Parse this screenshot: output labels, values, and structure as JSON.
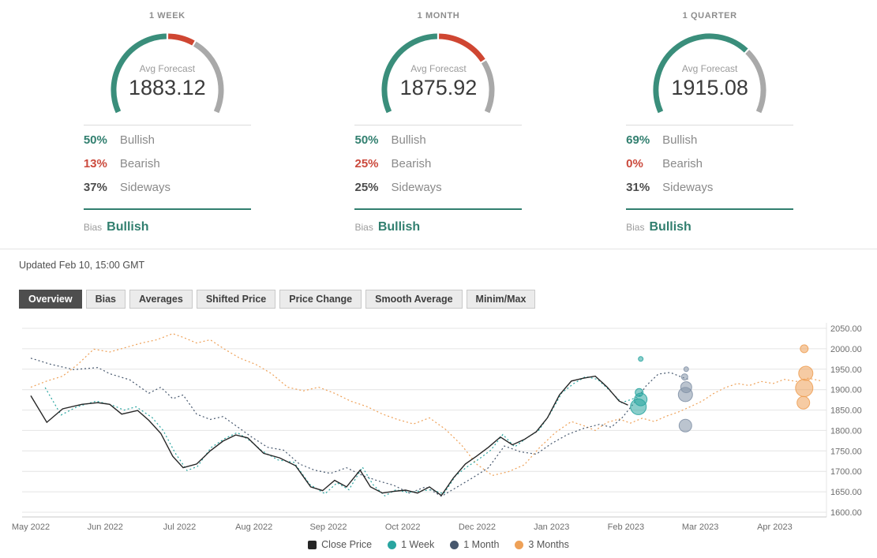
{
  "panels": [
    {
      "title": "1 WEEK",
      "avg_label": "Avg Forecast",
      "avg_value": "1883.12",
      "rows": [
        {
          "pct": "50%",
          "label": "Bullish",
          "type": "bullish"
        },
        {
          "pct": "13%",
          "label": "Bearish",
          "type": "bearish"
        },
        {
          "pct": "37%",
          "label": "Sideways",
          "type": "sideways"
        }
      ],
      "bias_label": "Bias",
      "bias_value": "Bullish"
    },
    {
      "title": "1 MONTH",
      "avg_label": "Avg Forecast",
      "avg_value": "1875.92",
      "rows": [
        {
          "pct": "50%",
          "label": "Bullish",
          "type": "bullish"
        },
        {
          "pct": "25%",
          "label": "Bearish",
          "type": "bearish"
        },
        {
          "pct": "25%",
          "label": "Sideways",
          "type": "sideways"
        }
      ],
      "bias_label": "Bias",
      "bias_value": "Bullish"
    },
    {
      "title": "1 QUARTER",
      "avg_label": "Avg Forecast",
      "avg_value": "1915.08",
      "rows": [
        {
          "pct": "69%",
          "label": "Bullish",
          "type": "bullish"
        },
        {
          "pct": "0%",
          "label": "Bearish",
          "type": "bearish"
        },
        {
          "pct": "31%",
          "label": "Sideways",
          "type": "sideways"
        }
      ],
      "bias_label": "Bias",
      "bias_value": "Bullish"
    }
  ],
  "updated": "Updated Feb 10, 15:00 GMT",
  "tabs": [
    {
      "label": "Overview",
      "active": true
    },
    {
      "label": "Bias"
    },
    {
      "label": "Averages"
    },
    {
      "label": "Shifted Price"
    },
    {
      "label": "Price Change"
    },
    {
      "label": "Smooth Average"
    },
    {
      "label": "Minim/Max"
    }
  ],
  "colors": {
    "gauge_bullish": "#3a8e7b",
    "gauge_bearish": "#cf4632",
    "gauge_sideways": "#a9a9a9",
    "accent_green": "#317f6f",
    "bearish_red": "#cb4a3d",
    "grid": "#e4e4e4",
    "axis": "#c9c9c9",
    "tick_text": "#6e6e6e"
  },
  "chart_data": {
    "type": "line",
    "title": "",
    "xlabel": "",
    "ylabel": "",
    "ylim": [
      1600,
      2050
    ],
    "grid": true,
    "legend_position": "bottom",
    "x_ticks": [
      "May 2022",
      "Jun 2022",
      "Jul 2022",
      "Aug 2022",
      "Sep 2022",
      "Oct 2022",
      "Dec 2022",
      "Jan 2023",
      "Feb 2023",
      "Mar 2023",
      "Apr 2023"
    ],
    "y_ticks": [
      "2050.00",
      "2000.00",
      "1950.00",
      "1900.00",
      "1850.00",
      "1800.00",
      "1750.00",
      "1700.00",
      "1650.00",
      "1600.00"
    ],
    "series": [
      {
        "name": "Close Price",
        "color": "#262626",
        "style": "solid",
        "marker": "square",
        "points": [
          [
            0.005,
            1885
          ],
          [
            0.025,
            1820
          ],
          [
            0.045,
            1853
          ],
          [
            0.069,
            1864
          ],
          [
            0.089,
            1868
          ],
          [
            0.104,
            1864
          ],
          [
            0.119,
            1840
          ],
          [
            0.139,
            1849
          ],
          [
            0.153,
            1825
          ],
          [
            0.168,
            1793
          ],
          [
            0.183,
            1737
          ],
          [
            0.196,
            1709
          ],
          [
            0.213,
            1718
          ],
          [
            0.23,
            1750
          ],
          [
            0.246,
            1774
          ],
          [
            0.262,
            1789
          ],
          [
            0.277,
            1782
          ],
          [
            0.297,
            1744
          ],
          [
            0.317,
            1733
          ],
          [
            0.337,
            1714
          ],
          [
            0.356,
            1662
          ],
          [
            0.371,
            1653
          ],
          [
            0.386,
            1678
          ],
          [
            0.401,
            1662
          ],
          [
            0.418,
            1703
          ],
          [
            0.431,
            1662
          ],
          [
            0.446,
            1647
          ],
          [
            0.46,
            1651
          ],
          [
            0.475,
            1654
          ],
          [
            0.49,
            1647
          ],
          [
            0.505,
            1662
          ],
          [
            0.52,
            1641
          ],
          [
            0.535,
            1684
          ],
          [
            0.55,
            1718
          ],
          [
            0.564,
            1737
          ],
          [
            0.579,
            1759
          ],
          [
            0.594,
            1784
          ],
          [
            0.609,
            1765
          ],
          [
            0.624,
            1778
          ],
          [
            0.639,
            1797
          ],
          [
            0.653,
            1831
          ],
          [
            0.668,
            1887
          ],
          [
            0.683,
            1921
          ],
          [
            0.698,
            1928
          ],
          [
            0.713,
            1933
          ],
          [
            0.728,
            1906
          ],
          [
            0.743,
            1872
          ],
          [
            0.754,
            1862
          ]
        ]
      },
      {
        "name": "1 Week",
        "color": "#29a5a0",
        "style": "dotted",
        "marker": "circle",
        "points": [
          [
            0.023,
            1905
          ],
          [
            0.043,
            1838
          ],
          [
            0.063,
            1858
          ],
          [
            0.087,
            1872
          ],
          [
            0.107,
            1862
          ],
          [
            0.122,
            1850
          ],
          [
            0.137,
            1858
          ],
          [
            0.157,
            1832
          ],
          [
            0.171,
            1800
          ],
          [
            0.186,
            1745
          ],
          [
            0.201,
            1702
          ],
          [
            0.214,
            1712
          ],
          [
            0.231,
            1758
          ],
          [
            0.248,
            1780
          ],
          [
            0.264,
            1795
          ],
          [
            0.28,
            1775
          ],
          [
            0.295,
            1750
          ],
          [
            0.315,
            1728
          ],
          [
            0.335,
            1722
          ],
          [
            0.355,
            1668
          ],
          [
            0.374,
            1645
          ],
          [
            0.389,
            1672
          ],
          [
            0.404,
            1655
          ],
          [
            0.421,
            1710
          ],
          [
            0.434,
            1668
          ],
          [
            0.449,
            1640
          ],
          [
            0.463,
            1655
          ],
          [
            0.478,
            1648
          ],
          [
            0.493,
            1652
          ],
          [
            0.508,
            1655
          ],
          [
            0.523,
            1645
          ],
          [
            0.538,
            1690
          ],
          [
            0.553,
            1712
          ],
          [
            0.567,
            1730
          ],
          [
            0.582,
            1752
          ],
          [
            0.597,
            1790
          ],
          [
            0.612,
            1760
          ],
          [
            0.627,
            1782
          ],
          [
            0.642,
            1800
          ],
          [
            0.656,
            1840
          ],
          [
            0.671,
            1892
          ],
          [
            0.686,
            1915
          ],
          [
            0.701,
            1932
          ],
          [
            0.716,
            1925
          ],
          [
            0.731,
            1898
          ],
          [
            0.746,
            1868
          ],
          [
            0.761,
            1878
          ],
          [
            0.77,
            1886
          ]
        ]
      },
      {
        "name": "1 Month",
        "color": "#47586e",
        "style": "dotted",
        "marker": "circle",
        "points": [
          [
            0.005,
            1977
          ],
          [
            0.03,
            1962
          ],
          [
            0.059,
            1949
          ],
          [
            0.089,
            1954
          ],
          [
            0.104,
            1939
          ],
          [
            0.129,
            1924
          ],
          [
            0.153,
            1891
          ],
          [
            0.168,
            1906
          ],
          [
            0.183,
            1878
          ],
          [
            0.196,
            1887
          ],
          [
            0.213,
            1840
          ],
          [
            0.23,
            1827
          ],
          [
            0.246,
            1834
          ],
          [
            0.262,
            1812
          ],
          [
            0.282,
            1784
          ],
          [
            0.302,
            1759
          ],
          [
            0.322,
            1752
          ],
          [
            0.342,
            1718
          ],
          [
            0.361,
            1703
          ],
          [
            0.381,
            1695
          ],
          [
            0.401,
            1709
          ],
          [
            0.421,
            1690
          ],
          [
            0.44,
            1677
          ],
          [
            0.46,
            1666
          ],
          [
            0.48,
            1647
          ],
          [
            0.5,
            1662
          ],
          [
            0.52,
            1639
          ],
          [
            0.54,
            1662
          ],
          [
            0.559,
            1684
          ],
          [
            0.579,
            1709
          ],
          [
            0.599,
            1762
          ],
          [
            0.619,
            1748
          ],
          [
            0.639,
            1742
          ],
          [
            0.658,
            1768
          ],
          [
            0.678,
            1790
          ],
          [
            0.698,
            1805
          ],
          [
            0.718,
            1815
          ],
          [
            0.733,
            1808
          ],
          [
            0.747,
            1832
          ],
          [
            0.762,
            1868
          ],
          [
            0.777,
            1910
          ],
          [
            0.792,
            1938
          ],
          [
            0.807,
            1942
          ],
          [
            0.822,
            1930
          ],
          [
            0.83,
            1925
          ]
        ]
      },
      {
        "name": "3 Months",
        "color": "#eea158",
        "style": "dotted",
        "marker": "circle",
        "points": [
          [
            0.005,
            1906
          ],
          [
            0.025,
            1921
          ],
          [
            0.045,
            1933
          ],
          [
            0.064,
            1962
          ],
          [
            0.084,
            1999
          ],
          [
            0.104,
            1992
          ],
          [
            0.124,
            2003
          ],
          [
            0.144,
            2014
          ],
          [
            0.163,
            2022
          ],
          [
            0.183,
            2037
          ],
          [
            0.196,
            2028
          ],
          [
            0.213,
            2014
          ],
          [
            0.23,
            2022
          ],
          [
            0.248,
            1999
          ],
          [
            0.267,
            1977
          ],
          [
            0.287,
            1962
          ],
          [
            0.307,
            1939
          ],
          [
            0.327,
            1906
          ],
          [
            0.347,
            1897
          ],
          [
            0.366,
            1906
          ],
          [
            0.386,
            1891
          ],
          [
            0.406,
            1872
          ],
          [
            0.426,
            1859
          ],
          [
            0.446,
            1840
          ],
          [
            0.465,
            1827
          ],
          [
            0.485,
            1816
          ],
          [
            0.505,
            1831
          ],
          [
            0.525,
            1803
          ],
          [
            0.545,
            1765
          ],
          [
            0.564,
            1718
          ],
          [
            0.584,
            1690
          ],
          [
            0.604,
            1699
          ],
          [
            0.624,
            1716
          ],
          [
            0.644,
            1760
          ],
          [
            0.663,
            1795
          ],
          [
            0.683,
            1822
          ],
          [
            0.698,
            1812
          ],
          [
            0.713,
            1800
          ],
          [
            0.728,
            1820
          ],
          [
            0.743,
            1828
          ],
          [
            0.757,
            1818
          ],
          [
            0.772,
            1830
          ],
          [
            0.787,
            1822
          ],
          [
            0.802,
            1835
          ],
          [
            0.817,
            1845
          ],
          [
            0.832,
            1858
          ],
          [
            0.847,
            1872
          ],
          [
            0.861,
            1890
          ],
          [
            0.876,
            1905
          ],
          [
            0.891,
            1915
          ],
          [
            0.906,
            1910
          ],
          [
            0.921,
            1920
          ],
          [
            0.936,
            1915
          ],
          [
            0.95,
            1925
          ],
          [
            0.965,
            1920
          ],
          [
            0.98,
            1928
          ],
          [
            0.995,
            1922
          ]
        ]
      }
    ],
    "bubbles": [
      {
        "series": "1 Week",
        "color": "#29a5a0",
        "points": [
          [
            0.77,
            1975,
            3
          ],
          [
            0.768,
            1893,
            5
          ],
          [
            0.77,
            1876,
            8
          ],
          [
            0.767,
            1858,
            10
          ]
        ]
      },
      {
        "series": "1 Month",
        "color": "#8494a8",
        "points": [
          [
            0.827,
            1950,
            3
          ],
          [
            0.825,
            1931,
            4
          ],
          [
            0.827,
            1906,
            7
          ],
          [
            0.826,
            1888,
            9
          ],
          [
            0.826,
            1812,
            8
          ]
        ]
      },
      {
        "series": "3 Months",
        "color": "#eea158",
        "points": [
          [
            0.975,
            2000,
            5
          ],
          [
            0.977,
            1940,
            9
          ],
          [
            0.975,
            1904,
            11
          ],
          [
            0.974,
            1868,
            8
          ]
        ]
      }
    ]
  }
}
